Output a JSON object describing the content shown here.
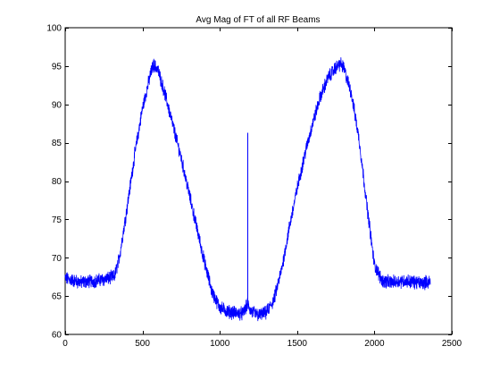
{
  "chart_data": {
    "type": "line",
    "title": "Avg Mag of FT of all RF Beams",
    "xlabel": "",
    "ylabel": "",
    "xlim": [
      0,
      2500
    ],
    "ylim": [
      60,
      100
    ],
    "x_ticks": [
      0,
      500,
      1000,
      1500,
      2000,
      2500
    ],
    "y_ticks": [
      60,
      65,
      70,
      75,
      80,
      85,
      90,
      95,
      100
    ],
    "x_tick_labels": [
      "0",
      "500",
      "1000",
      "1500",
      "2000",
      "2500"
    ],
    "y_tick_labels": [
      "60",
      "65",
      "70",
      "75",
      "80",
      "85",
      "90",
      "95",
      "100"
    ],
    "grid": false,
    "series": [
      {
        "color": "#0000ff",
        "n_points": 2362,
        "envelope": {
          "x": [
            0,
            100,
            200,
            280,
            320,
            350,
            400,
            450,
            500,
            550,
            570,
            600,
            650,
            700,
            750,
            800,
            850,
            900,
            950,
            1000,
            1050,
            1100,
            1150,
            1180,
            1200,
            1250,
            1300,
            1350,
            1400,
            1450,
            1500,
            1550,
            1600,
            1650,
            1700,
            1750,
            1780,
            1800,
            1850,
            1900,
            1950,
            2000,
            2050,
            2100,
            2200,
            2300,
            2362
          ],
          "y": [
            67.3,
            66.8,
            67.0,
            67.3,
            67.6,
            70.0,
            76.5,
            83.5,
            89.5,
            93.8,
            95.2,
            94.5,
            91.0,
            87.0,
            83.0,
            78.5,
            74.0,
            69.5,
            65.5,
            63.5,
            63.0,
            62.8,
            62.7,
            64.0,
            63.0,
            62.5,
            62.8,
            64.5,
            68.5,
            74.0,
            79.0,
            83.5,
            87.5,
            91.0,
            93.5,
            94.8,
            95.3,
            94.8,
            91.5,
            85.5,
            77.0,
            69.0,
            67.0,
            66.8,
            67.0,
            66.7,
            66.9
          ]
        },
        "spike": {
          "x": 1180,
          "y_from": 64.0,
          "y_to": 86.3
        }
      }
    ]
  }
}
